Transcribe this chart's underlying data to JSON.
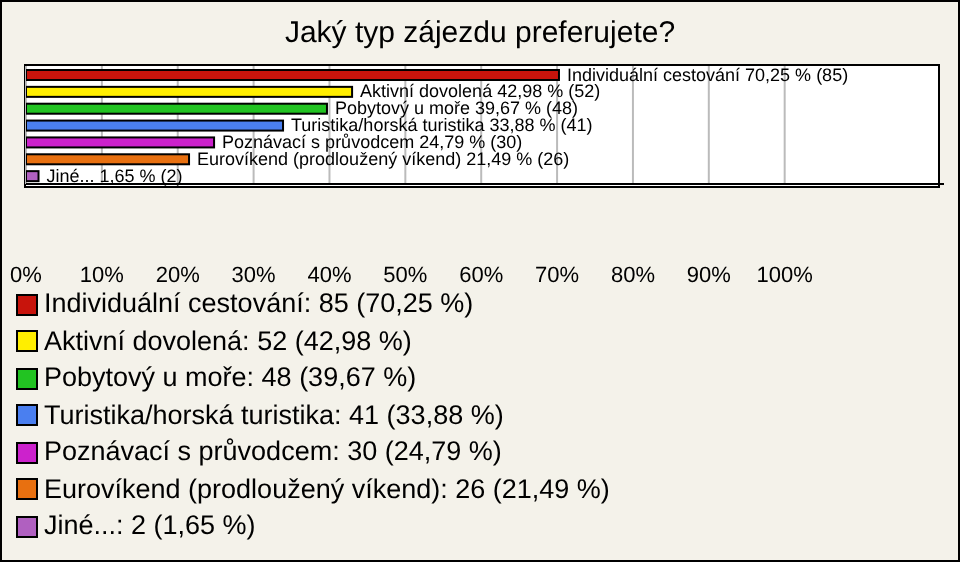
{
  "chart_data": {
    "type": "bar",
    "orientation": "horizontal",
    "stacked": true,
    "title": "Jaký typ zájezdu preferujete?",
    "categories": [
      null,
      null,
      null,
      null,
      null,
      null,
      null
    ],
    "series": [
      {
        "name": "Individuální cestování: 85 (70,25 %)",
        "color": "#c8140c",
        "values": [
          70.25,
          null,
          null,
          null,
          null,
          null,
          null
        ],
        "value_labels": [
          "Individuální cestování 70,25 % (85)",
          null,
          null,
          null,
          null,
          null,
          null
        ]
      },
      {
        "name": "Aktivní dovolená: 52 (42,98 %)",
        "color": "#ffee00",
        "values": [
          null,
          42.98,
          null,
          null,
          null,
          null,
          null
        ],
        "value_labels": [
          null,
          "Aktivní dovolená 42,98 % (52)",
          null,
          null,
          null,
          null,
          null
        ]
      },
      {
        "name": "Pobytový u moře: 48 (39,67 %)",
        "color": "#22c322",
        "values": [
          null,
          null,
          39.67,
          null,
          null,
          null,
          null
        ],
        "value_labels": [
          null,
          null,
          "Pobytový u moře 39,67 % (48)",
          null,
          null,
          null,
          null
        ]
      },
      {
        "name": "Turistika/horská turistika: 41 (33,88 %)",
        "color": "#4a7ff0",
        "values": [
          null,
          null,
          null,
          33.88,
          null,
          null,
          null
        ],
        "value_labels": [
          null,
          null,
          null,
          "Turistika/horská turistika 33,88 % (41)",
          null,
          null,
          null
        ]
      },
      {
        "name": "Poznávací s průvodcem: 30 (24,79 %)",
        "color": "#cc22cc",
        "values": [
          null,
          null,
          null,
          null,
          24.79,
          null,
          null
        ],
        "value_labels": [
          null,
          null,
          null,
          null,
          "Poznávací s průvodcem 24,79 % (30)",
          null,
          null
        ]
      },
      {
        "name": "Eurovíkend (prodloužený víkend): 26 (21,49 %)",
        "color": "#e87010",
        "values": [
          null,
          null,
          null,
          null,
          null,
          21.49,
          null
        ],
        "value_labels": [
          null,
          null,
          null,
          null,
          null,
          "Eurovíkend (prodloužený víkend) 21,49 % (26)",
          null
        ]
      },
      {
        "name": "Jiné...: 2 (1,65 %)",
        "color": "#b060c0",
        "values": [
          null,
          null,
          null,
          null,
          null,
          null,
          1.65
        ],
        "value_labels": [
          null,
          null,
          null,
          null,
          null,
          null,
          "Jiné... 1,65 % (2)"
        ]
      }
    ],
    "xlim": [
      0,
      121
    ],
    "xticks": [
      {
        "value": 0,
        "label": "0%"
      },
      {
        "value": 10,
        "label": "10%"
      },
      {
        "value": 20,
        "label": "20%"
      },
      {
        "value": 30,
        "label": "30%"
      },
      {
        "value": 40,
        "label": "40%"
      },
      {
        "value": 50,
        "label": "50%"
      },
      {
        "value": 60,
        "label": "60%"
      },
      {
        "value": 70,
        "label": "70%"
      },
      {
        "value": 80,
        "label": "80%"
      },
      {
        "value": 90,
        "label": "90%"
      },
      {
        "value": 100,
        "label": "100%"
      }
    ],
    "grid": "x",
    "legend": "bottom",
    "tick_labels": "x"
  }
}
